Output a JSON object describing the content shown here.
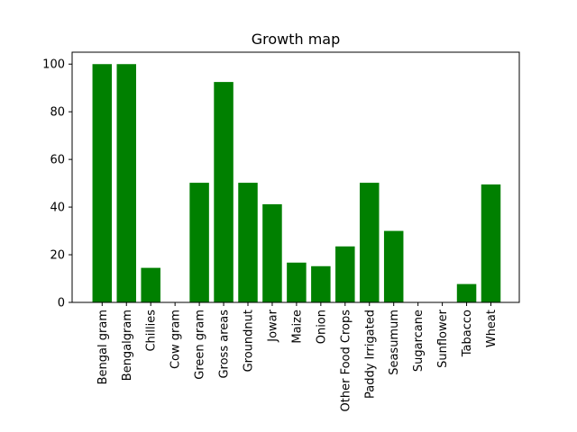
{
  "chart_data": {
    "type": "bar",
    "title": "Growth map",
    "xlabel": "",
    "ylabel": "",
    "categories": [
      "Bengal gram",
      "Bengalgram",
      "Chillies",
      "Cow gram",
      "Green gram",
      "Gross areas",
      "Groundnut",
      "Jowar",
      "Maize",
      "Onion",
      "Other Food Crops",
      "Paddy Irrigated",
      "Seasumum",
      "Sugarcane",
      "Sunflower",
      "Tabacco",
      "Wheat"
    ],
    "values": [
      100,
      100,
      14.5,
      0,
      50.2,
      92.5,
      50.2,
      41.2,
      16.7,
      15.2,
      23.5,
      50.2,
      30,
      0,
      0,
      7.7,
      49.5
    ],
    "ylim": [
      0,
      105
    ],
    "yticks": [
      0,
      20,
      40,
      60,
      80,
      100
    ],
    "bar_color": "#008000",
    "grid": false,
    "legend": "none"
  }
}
